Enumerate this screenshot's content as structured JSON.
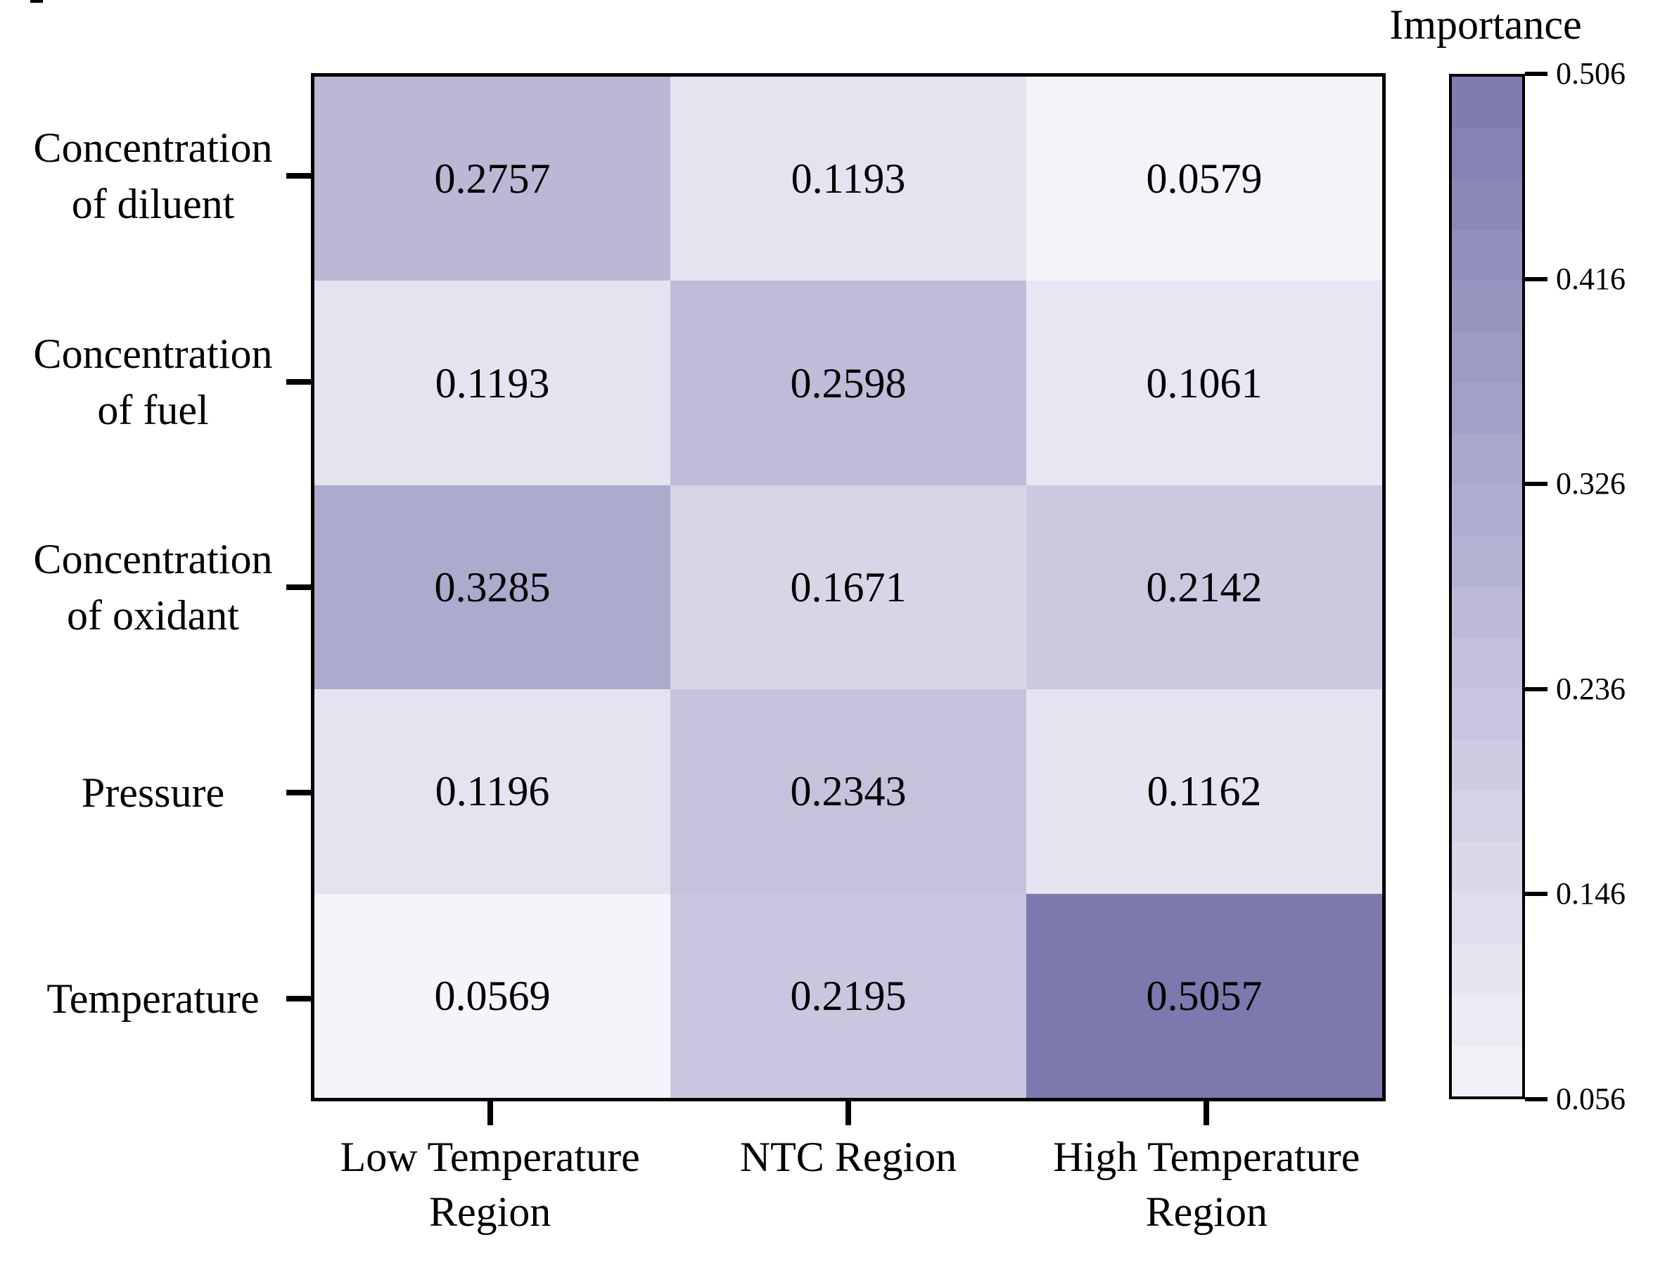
{
  "figure": {
    "background": "#ffffff",
    "foreground": "#000000",
    "has_corner_artifact": true
  },
  "chart_data": {
    "type": "heatmap",
    "title": "",
    "x_labels": [
      [
        "Low Temperature",
        "Region"
      ],
      [
        "NTC Region"
      ],
      [
        "High Temperature",
        "Region"
      ]
    ],
    "y_labels": [
      [
        "Concentration",
        "of diluent"
      ],
      [
        "Concentration",
        "of fuel"
      ],
      [
        "Concentration",
        "of oxidant"
      ],
      [
        "Pressure"
      ],
      [
        "Temperature"
      ]
    ],
    "values": [
      [
        0.2757,
        0.1193,
        0.0579
      ],
      [
        0.1193,
        0.2598,
        0.1061
      ],
      [
        0.3285,
        0.1671,
        0.2142
      ],
      [
        0.1196,
        0.2343,
        0.1162
      ],
      [
        0.0569,
        0.2195,
        0.5057
      ]
    ],
    "value_labels": [
      [
        "0.2757",
        "0.1193",
        "0.0579"
      ],
      [
        "0.1193",
        "0.2598",
        "0.1061"
      ],
      [
        "0.3285",
        "0.1671",
        "0.2142"
      ],
      [
        "0.1196",
        "0.2343",
        "0.1162"
      ],
      [
        "0.0569",
        "0.2195",
        "0.5057"
      ]
    ],
    "grid": "off",
    "cell_text_color": "#000000",
    "colorbar": {
      "title": "Importance",
      "position": "right",
      "vmin": 0.056,
      "vmax": 0.506,
      "tick_labels": [
        "0.506",
        "0.416",
        "0.326",
        "0.236",
        "0.146",
        "0.056"
      ],
      "tick_values": [
        0.506,
        0.416,
        0.326,
        0.236,
        0.146,
        0.056
      ],
      "color_low": "#f5f4fa",
      "color_high": "#7c79af",
      "bands": 20
    }
  }
}
